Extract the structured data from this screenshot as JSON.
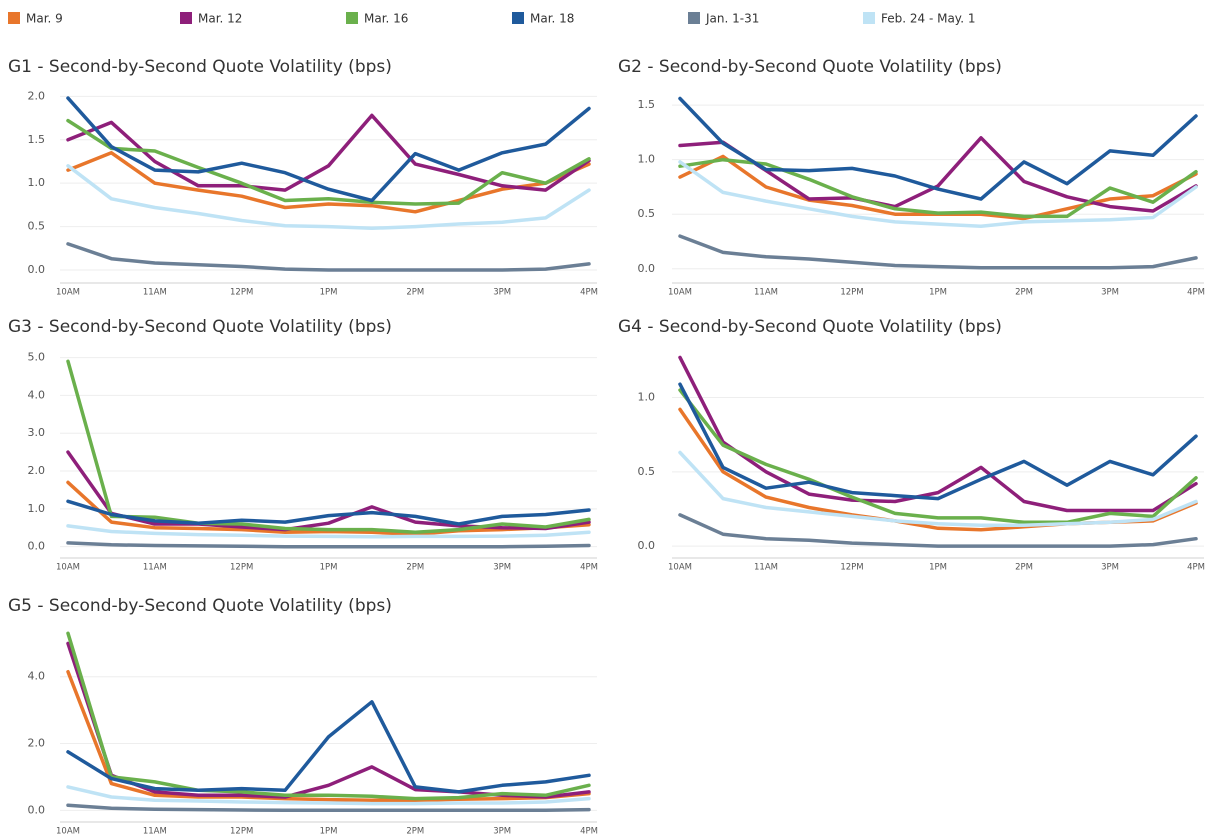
{
  "legend": {
    "items": [
      {
        "name": "Mar. 9",
        "color": "#e8762b"
      },
      {
        "name": "Mar. 12",
        "color": "#8e1f7a"
      },
      {
        "name": "Mar. 16",
        "color": "#6ab04c"
      },
      {
        "name": "Mar. 18",
        "color": "#1f5a9c"
      },
      {
        "name": "Jan. 1-31",
        "color": "#6b7f95"
      },
      {
        "name": "Feb. 24 - May. 1",
        "color": "#bfe3f5"
      }
    ]
  },
  "chart_data": [
    {
      "type": "line",
      "title": "G1 - Second-by-Second Quote Volatility (bps)",
      "x": [
        "10AM",
        null,
        "11AM",
        null,
        "12PM",
        null,
        "1PM",
        null,
        "2PM",
        null,
        "3PM",
        null,
        "4PM"
      ],
      "ylim": [
        -0.15,
        2.05
      ],
      "yticks": [
        {
          "value": 0,
          "label": "0.0"
        },
        {
          "value": 0.5,
          "label": "0.5"
        },
        {
          "value": 1,
          "label": "1.0"
        },
        {
          "value": 1.5,
          "label": "1.5"
        },
        {
          "value": 2,
          "label": "2.0"
        }
      ],
      "grid": true,
      "series": [
        {
          "values": [
            1.15,
            1.35,
            1.0,
            0.92,
            0.85,
            0.72,
            0.76,
            0.74,
            0.67,
            0.8,
            0.93,
            1.0,
            1.22
          ]
        },
        {
          "values": [
            1.5,
            1.7,
            1.25,
            0.97,
            0.97,
            0.92,
            1.2,
            1.78,
            1.22,
            1.1,
            0.97,
            0.92,
            1.26
          ]
        },
        {
          "values": [
            1.72,
            1.4,
            1.37,
            1.18,
            1.0,
            0.8,
            0.82,
            0.78,
            0.76,
            0.77,
            1.12,
            1.0,
            1.28
          ]
        },
        {
          "values": [
            1.98,
            1.42,
            1.15,
            1.13,
            1.23,
            1.12,
            0.93,
            0.8,
            1.34,
            1.15,
            1.35,
            1.45,
            1.86
          ]
        },
        {
          "values": [
            0.3,
            0.13,
            0.08,
            0.06,
            0.04,
            0.01,
            0,
            0,
            0,
            0,
            0,
            0.01,
            0.07
          ]
        },
        {
          "values": [
            1.2,
            0.82,
            0.72,
            0.65,
            0.57,
            0.51,
            0.5,
            0.48,
            0.5,
            0.53,
            0.55,
            0.6,
            0.92
          ]
        }
      ]
    },
    {
      "type": "line",
      "title": "G2 - Second-by-Second Quote Volatility (bps)",
      "x": [
        "10AM",
        null,
        "11AM",
        null,
        "12PM",
        null,
        "1PM",
        null,
        "2PM",
        null,
        "3PM",
        null,
        "4PM"
      ],
      "ylim": [
        -0.13,
        1.62
      ],
      "yticks": [
        {
          "value": 0,
          "label": "0.0"
        },
        {
          "value": 0.5,
          "label": "0.5"
        },
        {
          "value": 1,
          "label": "1.0"
        },
        {
          "value": 1.5,
          "label": "1.5"
        }
      ],
      "grid": true,
      "series": [
        {
          "values": [
            0.84,
            1.03,
            0.75,
            0.63,
            0.58,
            0.5,
            0.5,
            0.5,
            0.46,
            0.55,
            0.64,
            0.67,
            0.87
          ]
        },
        {
          "values": [
            1.13,
            1.16,
            0.9,
            0.64,
            0.65,
            0.57,
            0.76,
            1.2,
            0.8,
            0.66,
            0.57,
            0.53,
            0.76
          ]
        },
        {
          "values": [
            0.94,
            1.0,
            0.96,
            0.82,
            0.66,
            0.55,
            0.51,
            0.52,
            0.48,
            0.48,
            0.74,
            0.61,
            0.89
          ]
        },
        {
          "values": [
            1.56,
            1.15,
            0.91,
            0.9,
            0.92,
            0.85,
            0.73,
            0.64,
            0.98,
            0.78,
            1.08,
            1.04,
            1.4
          ]
        },
        {
          "values": [
            0.3,
            0.15,
            0.11,
            0.09,
            0.06,
            0.03,
            0.02,
            0.01,
            0.01,
            0.01,
            0.01,
            0.02,
            0.1
          ]
        },
        {
          "values": [
            0.98,
            0.7,
            0.62,
            0.55,
            0.48,
            0.43,
            0.41,
            0.39,
            0.43,
            0.44,
            0.45,
            0.47,
            0.75
          ]
        }
      ]
    },
    {
      "type": "line",
      "title": "G3 - Second-by-Second Quote Volatility (bps)",
      "x": [
        "10AM",
        null,
        "11AM",
        null,
        "12PM",
        null,
        "1PM",
        null,
        "2PM",
        null,
        "3PM",
        null,
        "4PM"
      ],
      "ylim": [
        -0.3,
        5.2
      ],
      "yticks": [
        {
          "value": 0,
          "label": "0.0"
        },
        {
          "value": 1,
          "label": "1.0"
        },
        {
          "value": 2,
          "label": "2.0"
        },
        {
          "value": 3,
          "label": "3.0"
        },
        {
          "value": 4,
          "label": "4.0"
        },
        {
          "value": 5,
          "label": "5.0"
        }
      ],
      "grid": true,
      "series": [
        {
          "values": [
            1.7,
            0.65,
            0.5,
            0.48,
            0.45,
            0.38,
            0.4,
            0.38,
            0.33,
            0.42,
            0.45,
            0.5,
            0.58
          ]
        },
        {
          "values": [
            2.5,
            0.88,
            0.6,
            0.6,
            0.52,
            0.45,
            0.62,
            1.05,
            0.65,
            0.55,
            0.5,
            0.48,
            0.65
          ]
        },
        {
          "values": [
            4.9,
            0.8,
            0.78,
            0.62,
            0.6,
            0.48,
            0.45,
            0.45,
            0.38,
            0.45,
            0.6,
            0.52,
            0.72
          ]
        },
        {
          "values": [
            1.2,
            0.85,
            0.68,
            0.62,
            0.7,
            0.65,
            0.82,
            0.9,
            0.8,
            0.6,
            0.8,
            0.85,
            0.97
          ]
        },
        {
          "values": [
            0.1,
            0.05,
            0.03,
            0.02,
            0.01,
            0,
            0,
            0,
            0,
            0,
            0,
            0.01,
            0.03
          ]
        },
        {
          "values": [
            0.55,
            0.4,
            0.35,
            0.32,
            0.3,
            0.28,
            0.27,
            0.26,
            0.27,
            0.27,
            0.28,
            0.3,
            0.38
          ]
        }
      ]
    },
    {
      "type": "line",
      "title": "G4 - Second-by-Second Quote Volatility (bps)",
      "x": [
        "10AM",
        null,
        "11AM",
        null,
        "12PM",
        null,
        "1PM",
        null,
        "2PM",
        null,
        "3PM",
        null,
        "4PM"
      ],
      "ylim": [
        -0.08,
        1.32
      ],
      "yticks": [
        {
          "value": 0,
          "label": "0.0"
        },
        {
          "value": 0.5,
          "label": "0.5"
        },
        {
          "value": 1,
          "label": "1.0"
        }
      ],
      "grid": true,
      "series": [
        {
          "values": [
            0.92,
            0.5,
            0.33,
            0.26,
            0.21,
            0.17,
            0.12,
            0.11,
            0.13,
            0.15,
            0.16,
            0.17,
            0.29
          ]
        },
        {
          "values": [
            1.27,
            0.7,
            0.5,
            0.35,
            0.31,
            0.3,
            0.36,
            0.53,
            0.3,
            0.24,
            0.24,
            0.24,
            0.42
          ]
        },
        {
          "values": [
            1.05,
            0.68,
            0.55,
            0.45,
            0.33,
            0.22,
            0.19,
            0.19,
            0.16,
            0.16,
            0.22,
            0.2,
            0.46
          ]
        },
        {
          "values": [
            1.09,
            0.53,
            0.39,
            0.43,
            0.36,
            0.34,
            0.32,
            0.45,
            0.57,
            0.41,
            0.57,
            0.48,
            0.74
          ]
        },
        {
          "values": [
            0.21,
            0.08,
            0.05,
            0.04,
            0.02,
            0.01,
            0,
            0,
            0,
            0,
            0,
            0.01,
            0.05
          ]
        },
        {
          "values": [
            0.63,
            0.32,
            0.26,
            0.23,
            0.2,
            0.17,
            0.15,
            0.14,
            0.14,
            0.15,
            0.16,
            0.18,
            0.3
          ]
        }
      ]
    },
    {
      "type": "line",
      "title": "G5 - Second-by-Second Quote Volatility (bps)",
      "x": [
        "10AM",
        null,
        "11AM",
        null,
        "12PM",
        null,
        "1PM",
        null,
        "2PM",
        null,
        "3PM",
        null,
        "4PM"
      ],
      "ylim": [
        -0.35,
        5.4
      ],
      "yticks": [
        {
          "value": 0,
          "label": "0.0"
        },
        {
          "value": 2,
          "label": "2.0"
        },
        {
          "value": 4,
          "label": "4.0"
        }
      ],
      "grid": true,
      "series": [
        {
          "values": [
            4.15,
            0.8,
            0.45,
            0.4,
            0.4,
            0.35,
            0.32,
            0.3,
            0.3,
            0.33,
            0.35,
            0.38,
            0.5
          ]
        },
        {
          "values": [
            5.0,
            1.05,
            0.55,
            0.45,
            0.45,
            0.4,
            0.75,
            1.3,
            0.62,
            0.55,
            0.45,
            0.4,
            0.55
          ]
        },
        {
          "values": [
            5.3,
            1.0,
            0.85,
            0.6,
            0.55,
            0.45,
            0.45,
            0.42,
            0.35,
            0.38,
            0.5,
            0.45,
            0.75
          ]
        },
        {
          "values": [
            1.75,
            0.95,
            0.65,
            0.6,
            0.65,
            0.6,
            2.2,
            3.25,
            0.7,
            0.55,
            0.75,
            0.85,
            1.05
          ]
        },
        {
          "values": [
            0.15,
            0.06,
            0.03,
            0.02,
            0.01,
            0,
            0,
            0,
            0,
            0,
            0,
            0,
            0.02
          ]
        },
        {
          "values": [
            0.7,
            0.4,
            0.3,
            0.28,
            0.25,
            0.23,
            0.22,
            0.2,
            0.2,
            0.22,
            0.22,
            0.25,
            0.35
          ]
        }
      ]
    }
  ]
}
